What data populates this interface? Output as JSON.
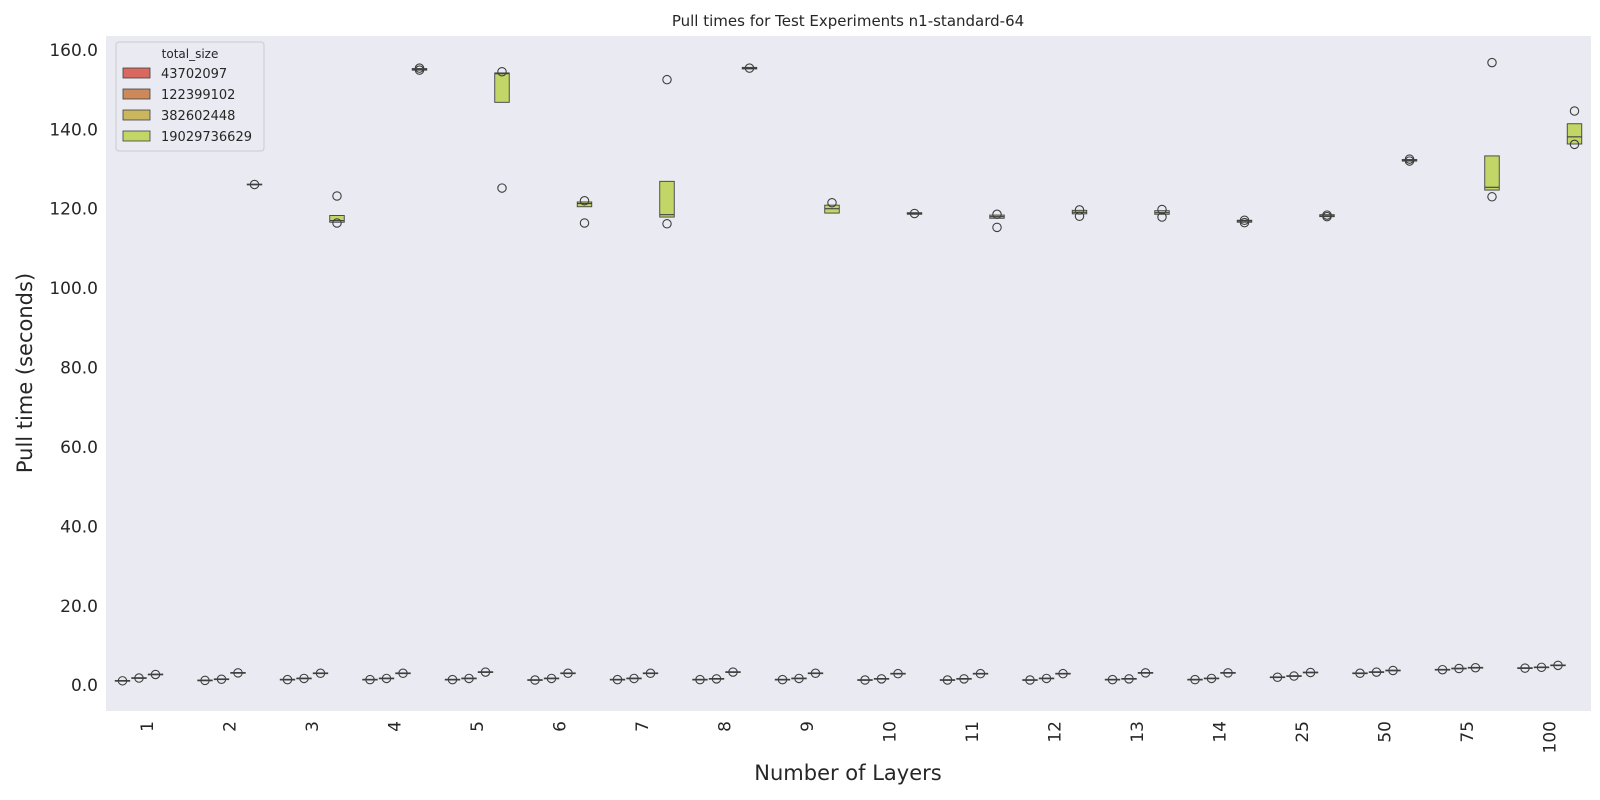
{
  "chart_data": {
    "type": "boxplot",
    "title": "Pull times for Test Experiments n1-standard-64",
    "xlabel": "Number of Layers",
    "ylabel": "Pull time (seconds)",
    "ylim": [
      -6.5,
      163.5
    ],
    "yticks": [
      "0.0",
      "20.0",
      "40.0",
      "60.0",
      "80.0",
      "100.0",
      "120.0",
      "140.0",
      "160.0"
    ],
    "categories": [
      "1",
      "2",
      "3",
      "4",
      "5",
      "6",
      "7",
      "8",
      "9",
      "10",
      "11",
      "12",
      "13",
      "14",
      "25",
      "50",
      "75",
      "100"
    ],
    "grid": false,
    "legend": {
      "title": "total_size",
      "position": "top-left",
      "entries": [
        "43702097",
        "122399102",
        "382602448",
        "19029736629"
      ]
    },
    "colors": [
      "#d9695f",
      "#cc8a5c",
      "#cbb660",
      "#c2d567"
    ],
    "plot_background": "#eaeaf2",
    "series": [
      {
        "name": "43702097",
        "boxes": [
          {
            "q1": 1.0,
            "median": 1.1,
            "q3": 1.2,
            "fliers": [
              1.1
            ]
          },
          {
            "q1": 1.1,
            "median": 1.2,
            "q3": 1.3,
            "fliers": [
              1.2
            ]
          },
          {
            "q1": 1.3,
            "median": 1.4,
            "q3": 1.5,
            "fliers": [
              1.4
            ]
          },
          {
            "q1": 1.3,
            "median": 1.4,
            "q3": 1.5,
            "fliers": [
              1.4
            ]
          },
          {
            "q1": 1.3,
            "median": 1.4,
            "q3": 1.5,
            "fliers": [
              1.4
            ]
          },
          {
            "q1": 1.2,
            "median": 1.3,
            "q3": 1.4,
            "fliers": [
              1.3
            ]
          },
          {
            "q1": 1.3,
            "median": 1.4,
            "q3": 1.5,
            "fliers": [
              1.4
            ]
          },
          {
            "q1": 1.3,
            "median": 1.4,
            "q3": 1.5,
            "fliers": [
              1.4
            ]
          },
          {
            "q1": 1.3,
            "median": 1.4,
            "q3": 1.5,
            "fliers": [
              1.4
            ]
          },
          {
            "q1": 1.2,
            "median": 1.3,
            "q3": 1.4,
            "fliers": [
              1.3
            ]
          },
          {
            "q1": 1.2,
            "median": 1.3,
            "q3": 1.4,
            "fliers": [
              1.3
            ]
          },
          {
            "q1": 1.2,
            "median": 1.3,
            "q3": 1.4,
            "fliers": [
              1.3
            ]
          },
          {
            "q1": 1.3,
            "median": 1.4,
            "q3": 1.5,
            "fliers": [
              1.4
            ]
          },
          {
            "q1": 1.3,
            "median": 1.4,
            "q3": 1.5,
            "fliers": [
              1.4
            ]
          },
          {
            "q1": 1.9,
            "median": 2.0,
            "q3": 2.1,
            "fliers": [
              2.0
            ]
          },
          {
            "q1": 2.9,
            "median": 3.0,
            "q3": 3.1,
            "fliers": [
              3.0
            ]
          },
          {
            "q1": 3.8,
            "median": 3.9,
            "q3": 4.0,
            "fliers": [
              3.9
            ]
          },
          {
            "q1": 4.2,
            "median": 4.3,
            "q3": 4.4,
            "fliers": [
              4.3
            ]
          }
        ]
      },
      {
        "name": "122399102",
        "boxes": [
          {
            "q1": 1.7,
            "median": 1.8,
            "q3": 1.9,
            "fliers": [
              1.8
            ]
          },
          {
            "q1": 1.4,
            "median": 1.5,
            "q3": 1.6,
            "fliers": [
              1.5
            ]
          },
          {
            "q1": 1.6,
            "median": 1.7,
            "q3": 1.8,
            "fliers": [
              1.7
            ]
          },
          {
            "q1": 1.6,
            "median": 1.7,
            "q3": 1.8,
            "fliers": [
              1.7
            ]
          },
          {
            "q1": 1.6,
            "median": 1.7,
            "q3": 1.8,
            "fliers": [
              1.7
            ]
          },
          {
            "q1": 1.6,
            "median": 1.7,
            "q3": 1.8,
            "fliers": [
              1.7
            ]
          },
          {
            "q1": 1.6,
            "median": 1.7,
            "q3": 1.8,
            "fliers": [
              1.7
            ]
          },
          {
            "q1": 1.5,
            "median": 1.6,
            "q3": 1.7,
            "fliers": [
              1.6
            ]
          },
          {
            "q1": 1.6,
            "median": 1.7,
            "q3": 1.8,
            "fliers": [
              1.7
            ]
          },
          {
            "q1": 1.5,
            "median": 1.6,
            "q3": 1.7,
            "fliers": [
              1.6
            ]
          },
          {
            "q1": 1.5,
            "median": 1.6,
            "q3": 1.7,
            "fliers": [
              1.6
            ]
          },
          {
            "q1": 1.6,
            "median": 1.7,
            "q3": 1.8,
            "fliers": [
              1.7
            ]
          },
          {
            "q1": 1.5,
            "median": 1.6,
            "q3": 1.7,
            "fliers": [
              1.6
            ]
          },
          {
            "q1": 1.6,
            "median": 1.7,
            "q3": 1.8,
            "fliers": [
              1.7
            ]
          },
          {
            "q1": 2.2,
            "median": 2.3,
            "q3": 2.4,
            "fliers": [
              2.3
            ]
          },
          {
            "q1": 3.2,
            "median": 3.3,
            "q3": 3.4,
            "fliers": [
              3.3
            ]
          },
          {
            "q1": 4.1,
            "median": 4.2,
            "q3": 4.3,
            "fliers": [
              4.2
            ]
          },
          {
            "q1": 4.4,
            "median": 4.5,
            "q3": 4.6,
            "fliers": [
              4.5
            ]
          }
        ]
      },
      {
        "name": "382602448",
        "boxes": [
          {
            "q1": 2.6,
            "median": 2.7,
            "q3": 2.8,
            "fliers": [
              2.7
            ]
          },
          {
            "q1": 3.0,
            "median": 3.1,
            "q3": 3.2,
            "fliers": [
              3.1
            ]
          },
          {
            "q1": 2.9,
            "median": 3.0,
            "q3": 3.1,
            "fliers": [
              3.0
            ]
          },
          {
            "q1": 2.9,
            "median": 3.0,
            "q3": 3.1,
            "fliers": [
              3.0
            ]
          },
          {
            "q1": 3.2,
            "median": 3.3,
            "q3": 3.4,
            "fliers": [
              3.3
            ]
          },
          {
            "q1": 2.9,
            "median": 3.0,
            "q3": 3.1,
            "fliers": [
              3.0
            ]
          },
          {
            "q1": 2.9,
            "median": 3.0,
            "q3": 3.1,
            "fliers": [
              3.0
            ]
          },
          {
            "q1": 3.2,
            "median": 3.3,
            "q3": 3.4,
            "fliers": [
              3.3
            ]
          },
          {
            "q1": 2.9,
            "median": 3.0,
            "q3": 3.1,
            "fliers": [
              3.0
            ]
          },
          {
            "q1": 2.8,
            "median": 2.9,
            "q3": 3.0,
            "fliers": [
              2.9
            ]
          },
          {
            "q1": 2.8,
            "median": 2.9,
            "q3": 3.0,
            "fliers": [
              2.9
            ]
          },
          {
            "q1": 2.8,
            "median": 2.9,
            "q3": 3.0,
            "fliers": [
              2.9
            ]
          },
          {
            "q1": 3.0,
            "median": 3.1,
            "q3": 3.2,
            "fliers": [
              3.1
            ]
          },
          {
            "q1": 3.0,
            "median": 3.1,
            "q3": 3.2,
            "fliers": [
              3.1
            ]
          },
          {
            "q1": 3.1,
            "median": 3.2,
            "q3": 3.3,
            "fliers": [
              3.2
            ]
          },
          {
            "q1": 3.6,
            "median": 3.7,
            "q3": 3.8,
            "fliers": [
              3.7
            ]
          },
          {
            "q1": 4.3,
            "median": 4.4,
            "q3": 4.5,
            "fliers": [
              4.4
            ]
          },
          {
            "q1": 4.9,
            "median": 5.0,
            "q3": 5.1,
            "fliers": [
              5.0
            ]
          }
        ]
      },
      {
        "name": "19029736629",
        "boxes": [
          null,
          {
            "q1": 126.0,
            "median": 126.1,
            "q3": 126.2,
            "fliers": [
              126.1
            ]
          },
          {
            "q1": 116.6,
            "median": 117.0,
            "q3": 118.3,
            "fliers": [
              123.2,
              116.4
            ]
          },
          {
            "q1": 154.9,
            "median": 155.1,
            "q3": 155.3,
            "fliers": [
              155.4,
              154.9
            ]
          },
          {
            "q1": 146.8,
            "median": 154.0,
            "q3": 154.2,
            "fliers": [
              154.5,
              125.2
            ]
          },
          {
            "q1": 120.5,
            "median": 121.3,
            "q3": 121.7,
            "fliers": [
              122.0,
              116.4
            ]
          },
          {
            "q1": 117.9,
            "median": 118.5,
            "q3": 126.9,
            "fliers": [
              152.5,
              116.2
            ]
          },
          {
            "q1": 155.2,
            "median": 155.4,
            "q3": 155.6,
            "fliers": [
              155.4
            ]
          },
          {
            "q1": 118.9,
            "median": 120.0,
            "q3": 120.9,
            "fliers": [
              121.5
            ]
          },
          {
            "q1": 118.6,
            "median": 118.8,
            "q3": 119.0,
            "fliers": [
              118.8
            ]
          },
          {
            "q1": 117.6,
            "median": 118.0,
            "q3": 118.4,
            "fliers": [
              118.6,
              115.3
            ]
          },
          {
            "q1": 118.7,
            "median": 119.1,
            "q3": 119.6,
            "fliers": [
              119.7,
              118.1
            ]
          },
          {
            "q1": 118.6,
            "median": 119.0,
            "q3": 119.5,
            "fliers": [
              119.8,
              117.9
            ]
          },
          {
            "q1": 116.6,
            "median": 116.9,
            "q3": 117.1,
            "fliers": [
              117.1,
              116.5
            ]
          },
          {
            "q1": 118.0,
            "median": 118.2,
            "q3": 118.5,
            "fliers": [
              118.4,
              118.0
            ]
          },
          {
            "q1": 132.0,
            "median": 132.2,
            "q3": 132.4,
            "fliers": [
              132.5,
              132.0
            ]
          },
          {
            "q1": 124.7,
            "median": 125.4,
            "q3": 133.3,
            "fliers": [
              156.8,
              123.0
            ]
          },
          {
            "q1": 136.3,
            "median": 138.1,
            "q3": 141.4,
            "fliers": [
              144.6,
              136.2
            ]
          }
        ]
      }
    ]
  }
}
